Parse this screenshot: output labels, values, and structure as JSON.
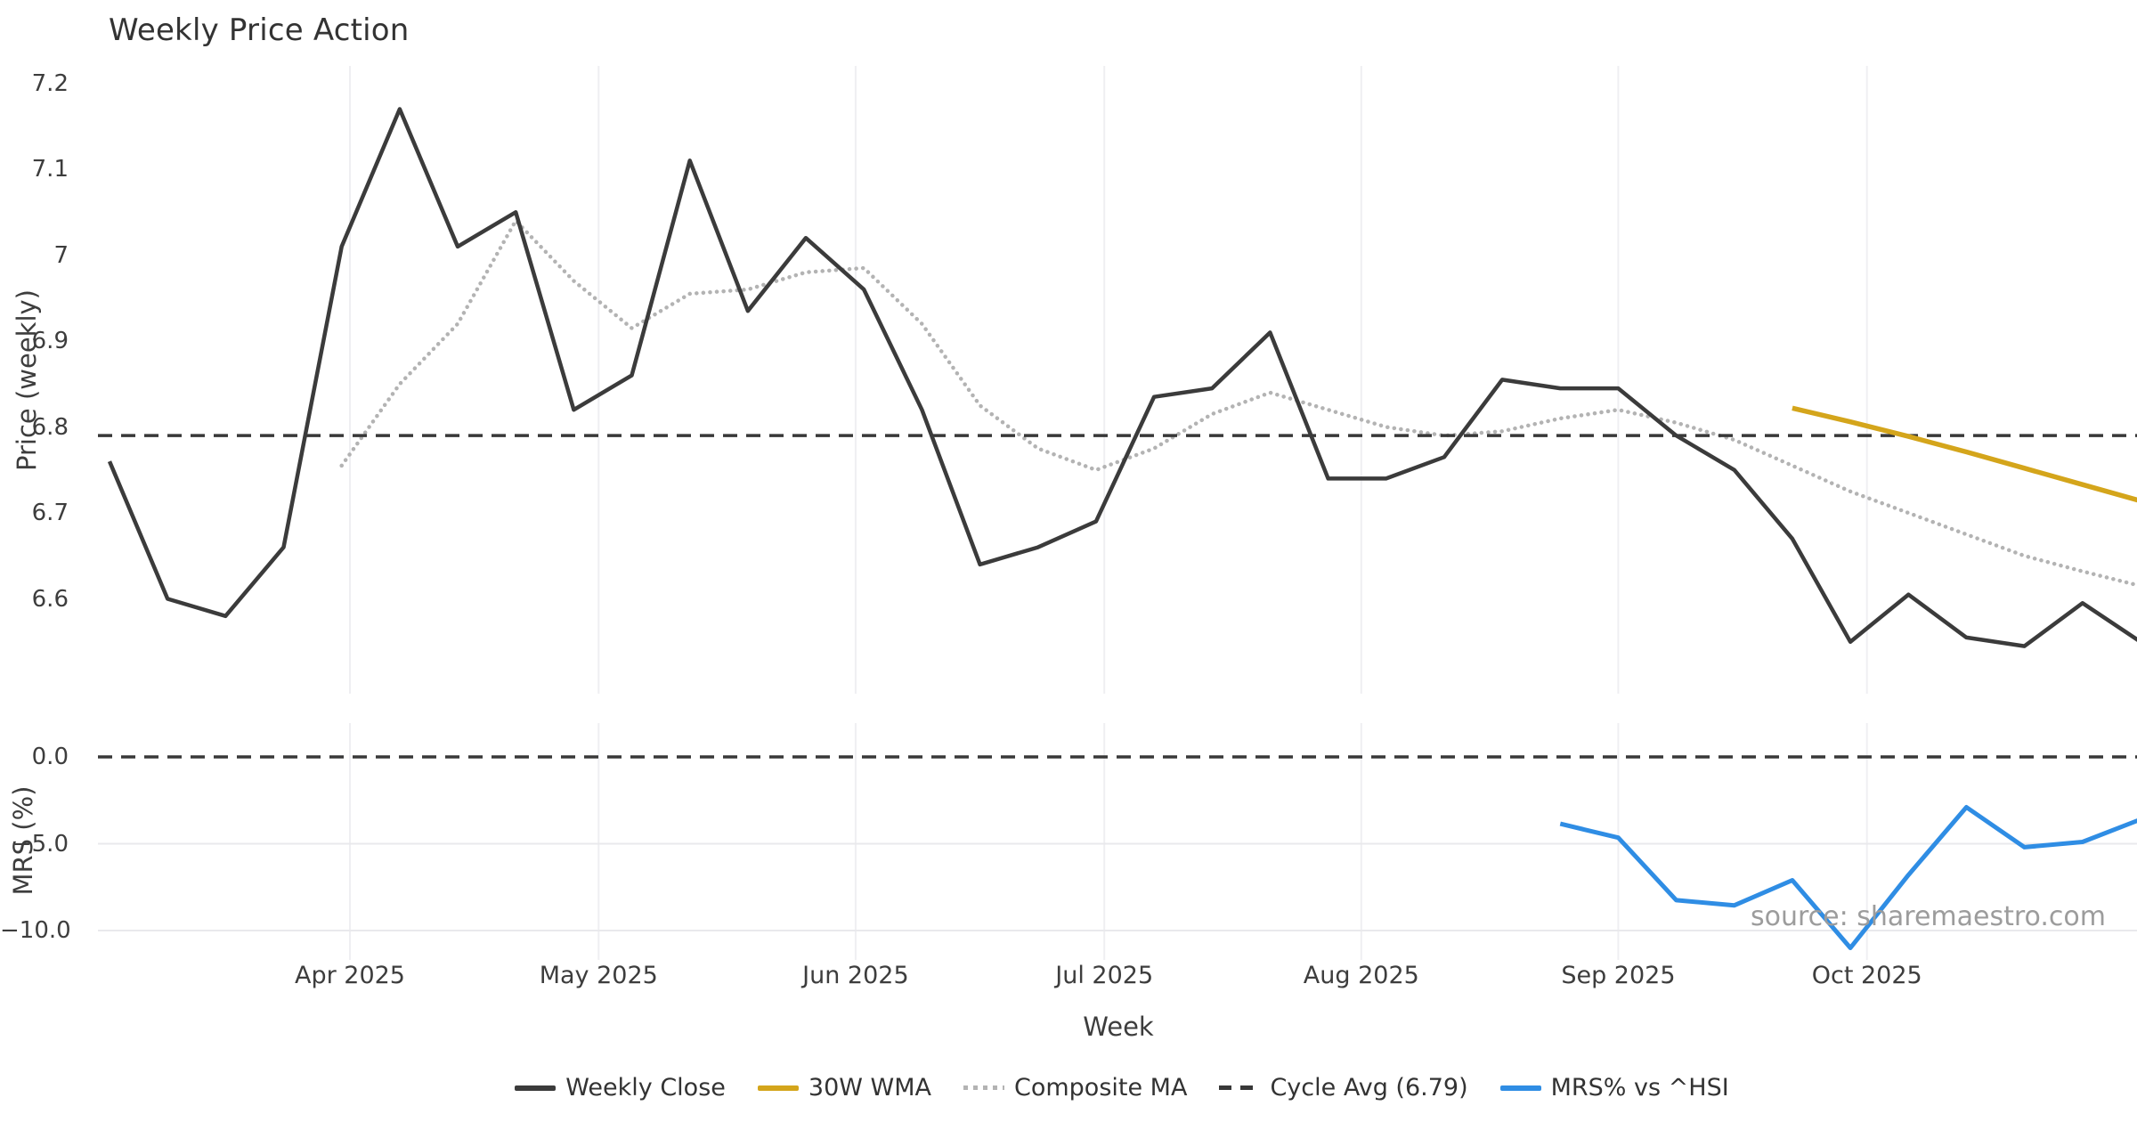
{
  "chart_data": {
    "type": "line",
    "title": "Weekly Price Action",
    "xlabel": "Week",
    "x_ticks": [
      "Apr 2025",
      "May 2025",
      "Jun 2025",
      "Jul 2025",
      "Aug 2025",
      "Sep 2025",
      "Oct 2025"
    ],
    "weeks_start": "2025-03-03",
    "week_interval_days": 7,
    "source_note": "source: sharemaestro.com",
    "panels": [
      {
        "id": "price",
        "ylabel": "Price (weekly)",
        "ytick_labels": [
          "7.2",
          "7.1",
          "7",
          "6.9",
          "6.8",
          "6.7",
          "6.6"
        ],
        "ytick_values": [
          7.2,
          7.1,
          7.0,
          6.9,
          6.8,
          6.7,
          6.6
        ],
        "ylim": [
          6.49,
          7.22
        ],
        "grid": "vertical-months"
      },
      {
        "id": "mrs",
        "ylabel": "MRS (%)",
        "ytick_labels": [
          "0.0",
          "−5.0",
          "−10.0"
        ],
        "ytick_values": [
          0.0,
          -5.0,
          -10.0
        ],
        "hgrid_values": [
          -5.0,
          -10.0
        ],
        "ylim": [
          -11.7,
          1.9
        ],
        "grid": "vertical-months"
      }
    ],
    "series": [
      {
        "name": "Weekly Close",
        "panel": "price",
        "style": "solid",
        "color": "#3b3b3b",
        "width": 4.5,
        "start_week": 0,
        "values": [
          6.76,
          6.6,
          6.58,
          6.66,
          7.01,
          7.17,
          7.01,
          7.05,
          6.82,
          6.86,
          7.11,
          6.935,
          7.02,
          6.96,
          6.82,
          6.64,
          6.66,
          6.69,
          6.835,
          6.845,
          6.91,
          6.74,
          6.74,
          6.765,
          6.855,
          6.845,
          6.845,
          6.79,
          6.75,
          6.67,
          6.55,
          6.605,
          6.555,
          6.545,
          6.595,
          6.55
        ]
      },
      {
        "name": "30W WMA",
        "panel": "price",
        "style": "solid",
        "color": "#d4a51b",
        "width": 5.5,
        "start_week": 29,
        "values": [
          6.822,
          6.806,
          6.789,
          6.771,
          6.752,
          6.733,
          6.714
        ]
      },
      {
        "name": "Composite MA",
        "panel": "price",
        "style": "dotted",
        "color": "#b3b3b3",
        "width": 4.5,
        "start_week": 4,
        "values": [
          6.755,
          6.85,
          6.92,
          7.04,
          6.97,
          6.915,
          6.955,
          6.96,
          6.98,
          6.985,
          6.92,
          6.825,
          6.775,
          6.75,
          6.775,
          6.815,
          6.84,
          6.82,
          6.8,
          6.79,
          6.795,
          6.81,
          6.82,
          6.805,
          6.785,
          6.755,
          6.725,
          6.7,
          6.675,
          6.65,
          6.632,
          6.615
        ]
      },
      {
        "name": "Cycle Avg (6.79)",
        "panel": "price",
        "style": "dashed",
        "color": "#383838",
        "width": 3.5,
        "const_value": 6.79
      },
      {
        "name": "MRS% vs ^HSI",
        "panel": "mrs",
        "style": "solid",
        "color": "#2f8de4",
        "width": 5,
        "start_week": 25,
        "values": [
          -3.85,
          -4.65,
          -8.25,
          -8.55,
          -7.1,
          -11.0,
          -6.8,
          -2.9,
          -5.2,
          -4.9,
          -3.6
        ]
      },
      {
        "name": "Zero Line",
        "panel": "mrs",
        "style": "dashed",
        "color": "#383838",
        "width": 3.5,
        "const_value": 0.0,
        "legend": false
      }
    ],
    "legend_entries": [
      "Weekly Close",
      "30W WMA",
      "Composite MA",
      "Cycle Avg (6.79)",
      "MRS% vs ^HSI"
    ]
  }
}
